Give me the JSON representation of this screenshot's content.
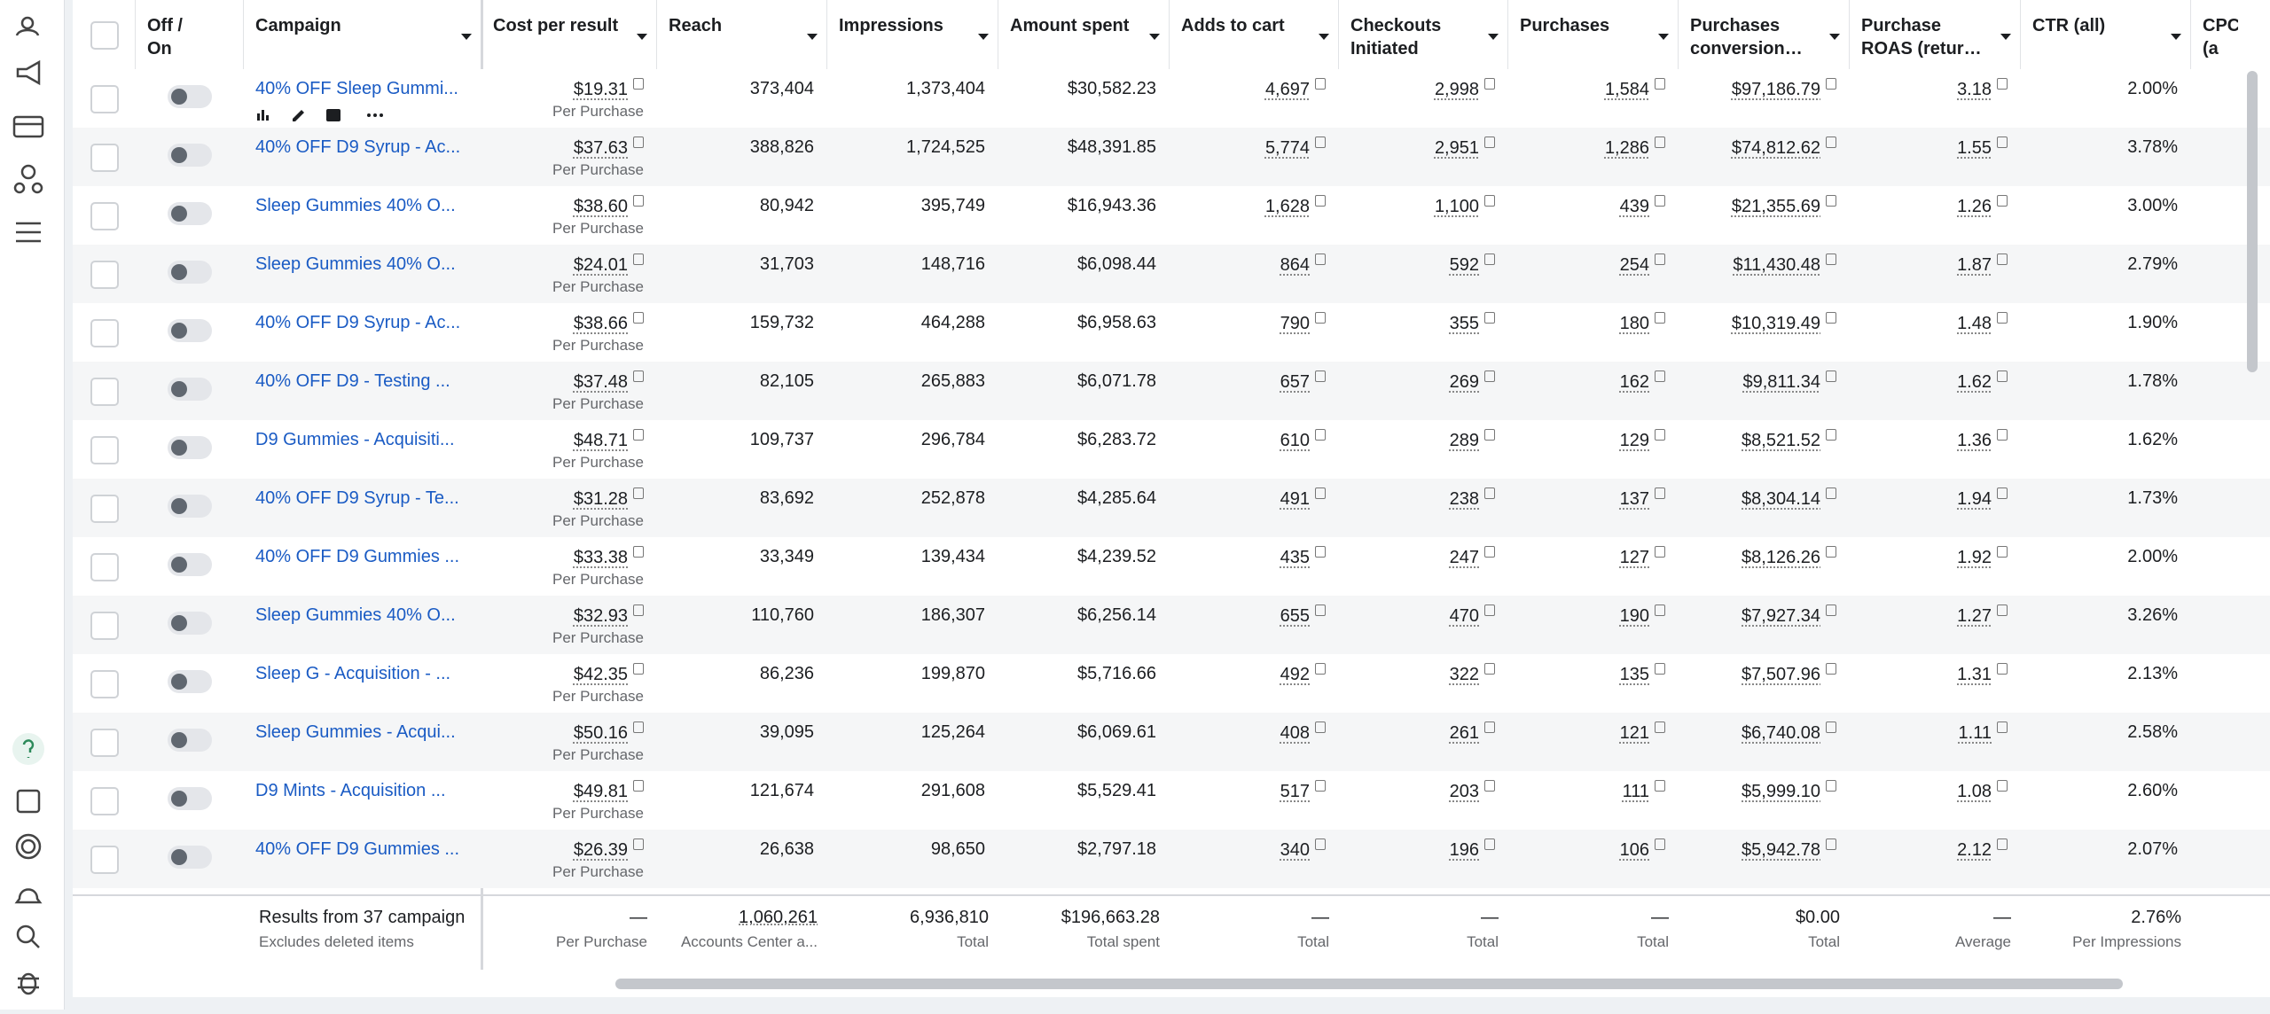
{
  "table": {
    "headers": [
      "Off / On",
      "Campaign",
      "Cost per result",
      "Reach",
      "Impressions",
      "Amount spent",
      "Adds to cart",
      "Checkouts Initiated",
      "Purchases",
      "Purchases conversion…",
      "Purchase ROAS (retur…",
      "CTR (all)",
      "CPC (a"
    ],
    "rows": [
      {
        "campaign": "40% OFF Sleep Gummi...",
        "cost": "$19.31",
        "cost_label": "Per Purchase",
        "reach": "373,404",
        "impressions": "1,373,404",
        "amount": "$30,582.23",
        "adds": "4,697",
        "checkouts": "2,998",
        "purchases": "1,584",
        "conv": "$97,186.79",
        "roas": "3.18",
        "ctr": "2.00%"
      },
      {
        "campaign": "40% OFF D9 Syrup - Ac...",
        "cost": "$37.63",
        "cost_label": "Per Purchase",
        "reach": "388,826",
        "impressions": "1,724,525",
        "amount": "$48,391.85",
        "adds": "5,774",
        "checkouts": "2,951",
        "purchases": "1,286",
        "conv": "$74,812.62",
        "roas": "1.55",
        "ctr": "3.78%"
      },
      {
        "campaign": "Sleep Gummies 40% O...",
        "cost": "$38.60",
        "cost_label": "Per Purchase",
        "reach": "80,942",
        "impressions": "395,749",
        "amount": "$16,943.36",
        "adds": "1,628",
        "checkouts": "1,100",
        "purchases": "439",
        "conv": "$21,355.69",
        "roas": "1.26",
        "ctr": "3.00%"
      },
      {
        "campaign": "Sleep Gummies 40% O...",
        "cost": "$24.01",
        "cost_label": "Per Purchase",
        "reach": "31,703",
        "impressions": "148,716",
        "amount": "$6,098.44",
        "adds": "864",
        "checkouts": "592",
        "purchases": "254",
        "conv": "$11,430.48",
        "roas": "1.87",
        "ctr": "2.79%"
      },
      {
        "campaign": "40% OFF D9 Syrup - Ac...",
        "cost": "$38.66",
        "cost_label": "Per Purchase",
        "reach": "159,732",
        "impressions": "464,288",
        "amount": "$6,958.63",
        "adds": "790",
        "checkouts": "355",
        "purchases": "180",
        "conv": "$10,319.49",
        "roas": "1.48",
        "ctr": "1.90%"
      },
      {
        "campaign": "40% OFF D9 - Testing ...",
        "cost": "$37.48",
        "cost_label": "Per Purchase",
        "reach": "82,105",
        "impressions": "265,883",
        "amount": "$6,071.78",
        "adds": "657",
        "checkouts": "269",
        "purchases": "162",
        "conv": "$9,811.34",
        "roas": "1.62",
        "ctr": "1.78%"
      },
      {
        "campaign": "D9 Gummies - Acquisiti...",
        "cost": "$48.71",
        "cost_label": "Per Purchase",
        "reach": "109,737",
        "impressions": "296,784",
        "amount": "$6,283.72",
        "adds": "610",
        "checkouts": "289",
        "purchases": "129",
        "conv": "$8,521.52",
        "roas": "1.36",
        "ctr": "1.62%"
      },
      {
        "campaign": "40% OFF D9 Syrup - Te...",
        "cost": "$31.28",
        "cost_label": "Per Purchase",
        "reach": "83,692",
        "impressions": "252,878",
        "amount": "$4,285.64",
        "adds": "491",
        "checkouts": "238",
        "purchases": "137",
        "conv": "$8,304.14",
        "roas": "1.94",
        "ctr": "1.73%"
      },
      {
        "campaign": "40% OFF D9 Gummies ...",
        "cost": "$33.38",
        "cost_label": "Per Purchase",
        "reach": "33,349",
        "impressions": "139,434",
        "amount": "$4,239.52",
        "adds": "435",
        "checkouts": "247",
        "purchases": "127",
        "conv": "$8,126.26",
        "roas": "1.92",
        "ctr": "2.00%"
      },
      {
        "campaign": "Sleep Gummies 40% O...",
        "cost": "$32.93",
        "cost_label": "Per Purchase",
        "reach": "110,760",
        "impressions": "186,307",
        "amount": "$6,256.14",
        "adds": "655",
        "checkouts": "470",
        "purchases": "190",
        "conv": "$7,927.34",
        "roas": "1.27",
        "ctr": "3.26%"
      },
      {
        "campaign": "Sleep G - Acquisition - ...",
        "cost": "$42.35",
        "cost_label": "Per Purchase",
        "reach": "86,236",
        "impressions": "199,870",
        "amount": "$5,716.66",
        "adds": "492",
        "checkouts": "322",
        "purchases": "135",
        "conv": "$7,507.96",
        "roas": "1.31",
        "ctr": "2.13%"
      },
      {
        "campaign": "Sleep Gummies - Acqui...",
        "cost": "$50.16",
        "cost_label": "Per Purchase",
        "reach": "39,095",
        "impressions": "125,264",
        "amount": "$6,069.61",
        "adds": "408",
        "checkouts": "261",
        "purchases": "121",
        "conv": "$6,740.08",
        "roas": "1.11",
        "ctr": "2.58%"
      },
      {
        "campaign": "D9 Mints - Acquisition ...",
        "cost": "$49.81",
        "cost_label": "Per Purchase",
        "reach": "121,674",
        "impressions": "291,608",
        "amount": "$5,529.41",
        "adds": "517",
        "checkouts": "203",
        "purchases": "111",
        "conv": "$5,999.10",
        "roas": "1.08",
        "ctr": "2.60%"
      },
      {
        "campaign": "40% OFF D9 Gummies ...",
        "cost": "$26.39",
        "cost_label": "Per Purchase",
        "reach": "26,638",
        "impressions": "98,650",
        "amount": "$2,797.18",
        "adds": "340",
        "checkouts": "196",
        "purchases": "106",
        "conv": "$5,942.78",
        "roas": "2.12",
        "ctr": "2.07%"
      }
    ],
    "footer": [
      {
        "value": "Results from 37 campaign",
        "sub": "Excludes deleted items"
      },
      {
        "value": "—",
        "sub": "Per Purchase"
      },
      {
        "value": "1,060,261",
        "sub": "Accounts Center a..."
      },
      {
        "value": "6,936,810",
        "sub": "Total"
      },
      {
        "value": "$196,663.28",
        "sub": "Total spent"
      },
      {
        "value": "—",
        "sub": "Total"
      },
      {
        "value": "—",
        "sub": "Total"
      },
      {
        "value": "—",
        "sub": "Total"
      },
      {
        "value": "$0.00",
        "sub": "Total"
      },
      {
        "value": "—",
        "sub": "Average"
      },
      {
        "value": "2.76%",
        "sub": "Per Impressions"
      }
    ]
  }
}
